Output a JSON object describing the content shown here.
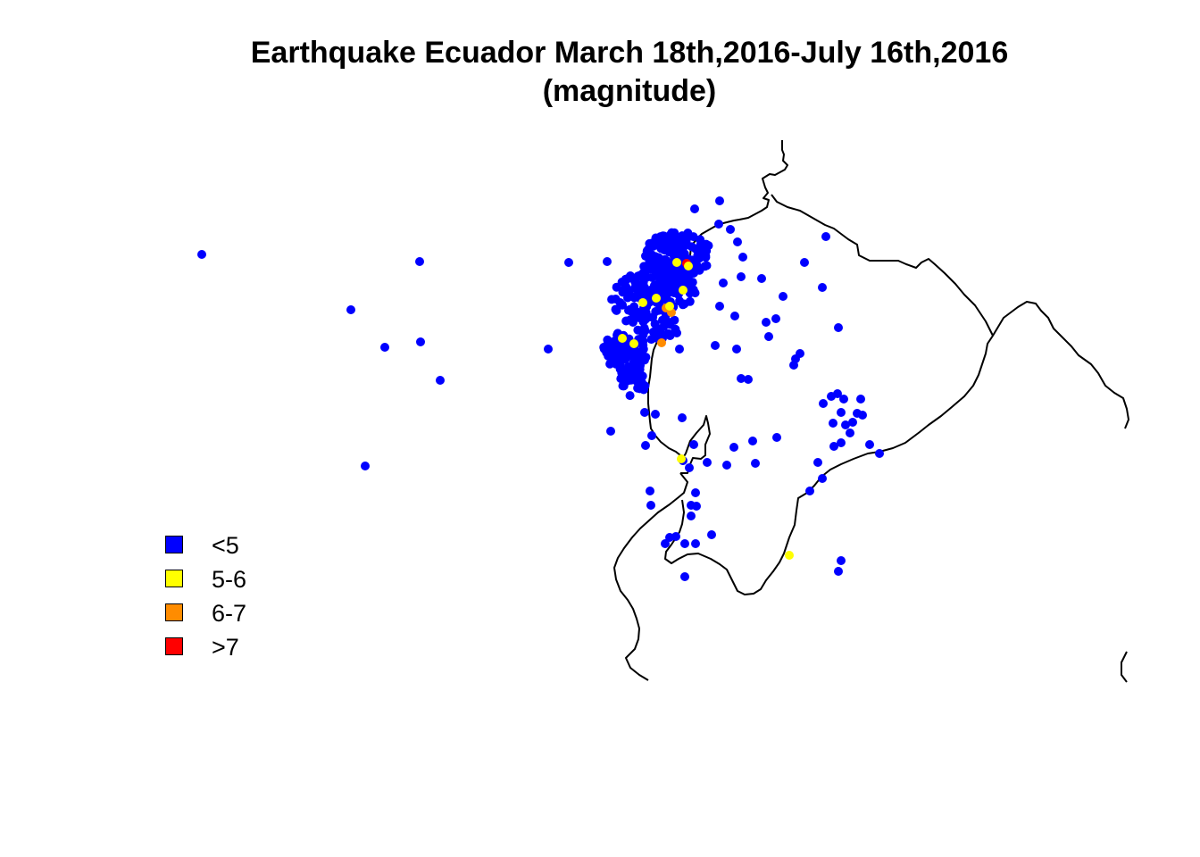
{
  "title": {
    "line1": "Earthquake Ecuador March 18th,2016-July 16th,2016",
    "line2": "(magnitude)"
  },
  "legend": {
    "items": [
      {
        "label": "<5",
        "color": "#0000ff"
      },
      {
        "label": "5-6",
        "color": "#ffff00"
      },
      {
        "label": "6-7",
        "color": "#ff8c00"
      },
      {
        "label": ">7",
        "color": "#ff0000"
      }
    ]
  },
  "colors": {
    "background": "#ffffff",
    "coastline": "#000000",
    "lt5": "#0000ff",
    "m5_6": "#ffff00",
    "m6_7": "#ff8c00",
    "gt7": "#ff0000"
  }
}
